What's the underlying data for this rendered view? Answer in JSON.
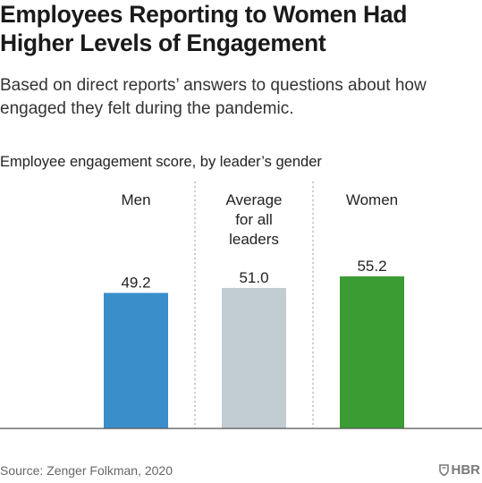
{
  "title": "Employees Reporting to Women Had Higher Levels of Engagement",
  "subtitle": "Based on direct reports’ answers to questions about how engaged they felt during the pandemic.",
  "source": "Source: Zenger Folkman, 2020",
  "logo_text": "HBR",
  "logo_icon": "shield-icon",
  "chart_data": {
    "type": "bar",
    "title": "Employee engagement score, by leader’s gender",
    "categories": [
      "Men",
      "Average for all leaders",
      "Women"
    ],
    "category_lines": [
      [
        "Men"
      ],
      [
        "Average",
        "for all",
        "leaders"
      ],
      [
        "Women"
      ]
    ],
    "values": [
      49.2,
      51.0,
      55.2
    ],
    "value_labels": [
      "49.2",
      "51.0",
      "55.2"
    ],
    "colors": [
      "#3a8fcb",
      "#c2ccd3",
      "#3b9c33"
    ],
    "ylim": [
      0,
      55.2
    ],
    "grid": false,
    "legend": "none"
  }
}
